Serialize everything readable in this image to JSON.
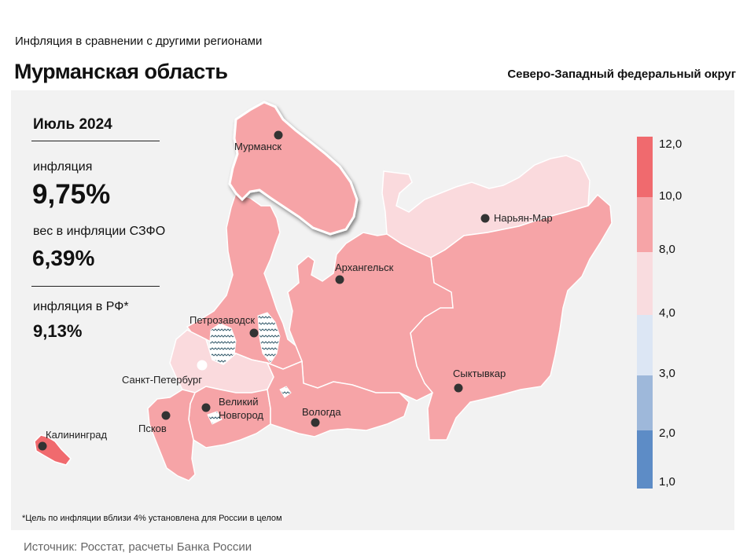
{
  "header": {
    "subtitle": "Инфляция  в сравнении  с другими  регионами",
    "title": "Мурманская область",
    "district": "Северо-Западный федеральный округ"
  },
  "info": {
    "period": "Июль 2024",
    "inflation_label": "инфляция",
    "inflation_value": "9,75%",
    "weight_label": "вес в инфляции  СЗФО",
    "weight_value": "6,39%",
    "rf_label": "инфляция  в РФ*",
    "rf_value": "9,13%"
  },
  "cities": {
    "murmansk": "Мурманск",
    "naryan_mar": "Нарьян-Мар",
    "arkhangelsk": "Архангельск",
    "petrozavodsk": "Петрозаводск",
    "spb": "Санкт-Петербург",
    "novgorod_1": "Великий",
    "novgorod_2": "Новгород",
    "vologda": "Вологда",
    "syktyvkar": "Сыктывкар",
    "pskov": "Псков",
    "kaliningrad": "Калининград"
  },
  "legend": {
    "ticks": [
      "12,0",
      "10,0",
      "8,0",
      "4,0",
      "3,0",
      "2,0",
      "1,0"
    ],
    "colors": [
      "#f06a6e",
      "#f6a4a7",
      "#f9dcdf",
      "#dce6f4",
      "#9eb8da",
      "#5d8cc6"
    ]
  },
  "region_colors": {
    "highlight": "#f6a4a7",
    "high": "#f6a4a7",
    "mid": "#fadadd",
    "top": "#f06a6e",
    "pale": "#fbe8ea"
  },
  "footnote": "*Цель по инфляции вблизи 4% установлена для России в целом",
  "source": "Источник:  Росстат,  расчеты  Банка  России"
}
